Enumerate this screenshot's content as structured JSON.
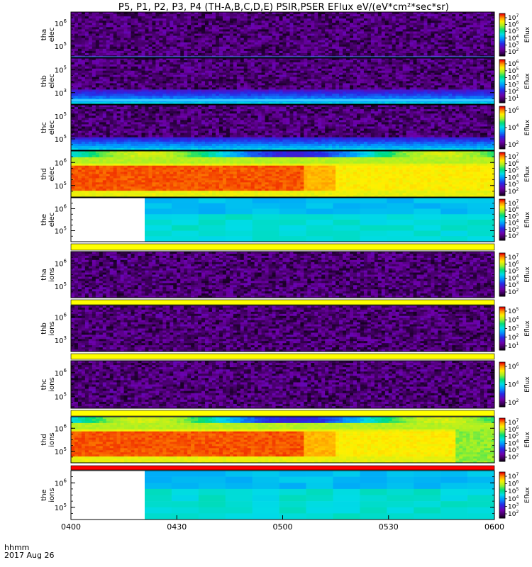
{
  "chart_data": {
    "type": "heatmap",
    "title": "P5, P1, P2, P3, P4 (TH-A,B,C,D,E) PSIR,PSER EFlux eV/(eV*cm²*sec*sr)",
    "x_ticks": [
      "0400",
      "0430",
      "0500",
      "0530",
      "0600"
    ],
    "x_range": [
      "0400",
      "0600"
    ],
    "footer_lines": [
      "hhmm",
      "2017 Aug 26"
    ],
    "colorbar_label": "Eflux",
    "panels": [
      {
        "label_line1": "tha",
        "label_line2": "elec",
        "y_ticks": [
          {
            "base": "10",
            "exp": "6"
          },
          {
            "base": "10",
            "exp": "5"
          }
        ],
        "colorbar_ticks": [
          {
            "base": "10",
            "exp": "7"
          },
          {
            "base": "10",
            "exp": "6"
          },
          {
            "base": "10",
            "exp": "5"
          },
          {
            "base": "10",
            "exp": "4"
          },
          {
            "base": "10",
            "exp": "3"
          },
          {
            "base": "10",
            "exp": "2"
          }
        ],
        "pattern": "noise"
      },
      {
        "label_line1": "thb",
        "label_line2": "elec",
        "y_ticks": [
          {
            "base": "10",
            "exp": "5"
          },
          {
            "base": "10",
            "exp": "3"
          }
        ],
        "colorbar_ticks": [
          {
            "base": "10",
            "exp": "6"
          },
          {
            "base": "10",
            "exp": "5"
          },
          {
            "base": "10",
            "exp": "4"
          },
          {
            "base": "10",
            "exp": "3"
          },
          {
            "base": "10",
            "exp": "2"
          },
          {
            "base": "10",
            "exp": "1"
          }
        ],
        "pattern": "noise-band"
      },
      {
        "label_line1": "thc",
        "label_line2": "elec",
        "y_ticks": [
          {
            "base": "10",
            "exp": "5"
          },
          {
            "base": "10",
            "exp": "5"
          }
        ],
        "colorbar_ticks": [
          {
            "base": "10",
            "exp": "6"
          },
          {
            "base": "10",
            "exp": "4"
          },
          {
            "base": "10",
            "exp": "2"
          }
        ],
        "pattern": "noise-band"
      },
      {
        "label_line1": "thd",
        "label_line2": "elec",
        "y_ticks": [
          {
            "base": "10",
            "exp": "6"
          },
          {
            "base": "10",
            "exp": "5"
          }
        ],
        "colorbar_ticks": [
          {
            "base": "10",
            "exp": "7"
          },
          {
            "base": "10",
            "exp": "6"
          },
          {
            "base": "10",
            "exp": "5"
          },
          {
            "base": "10",
            "exp": "4"
          },
          {
            "base": "10",
            "exp": "3"
          },
          {
            "base": "10",
            "exp": "2"
          }
        ],
        "pattern": "hot"
      },
      {
        "label_line1": "the",
        "label_line2": "elec",
        "y_ticks": [
          {
            "base": "10",
            "exp": "6"
          },
          {
            "base": "10",
            "exp": "5"
          }
        ],
        "colorbar_ticks": [
          {
            "base": "10",
            "exp": "7"
          },
          {
            "base": "10",
            "exp": "6"
          },
          {
            "base": "10",
            "exp": "5"
          },
          {
            "base": "10",
            "exp": "4"
          },
          {
            "base": "10",
            "exp": "3"
          },
          {
            "base": "10",
            "exp": "2"
          }
        ],
        "pattern": "cyan-gap"
      },
      {
        "label_line1": "tha",
        "label_line2": "ions",
        "y_ticks": [
          {
            "base": "10",
            "exp": "6"
          },
          {
            "base": "10",
            "exp": "5"
          }
        ],
        "colorbar_ticks": [
          {
            "base": "10",
            "exp": "7"
          },
          {
            "base": "10",
            "exp": "6"
          },
          {
            "base": "10",
            "exp": "5"
          },
          {
            "base": "10",
            "exp": "4"
          },
          {
            "base": "10",
            "exp": "3"
          },
          {
            "base": "10",
            "exp": "2"
          }
        ],
        "pattern": "noise-ions"
      },
      {
        "label_line1": "thb",
        "label_line2": "ions",
        "y_ticks": [
          {
            "base": "10",
            "exp": "6"
          },
          {
            "base": "10",
            "exp": "3"
          }
        ],
        "colorbar_ticks": [
          {
            "base": "10",
            "exp": "5"
          },
          {
            "base": "10",
            "exp": "4"
          },
          {
            "base": "10",
            "exp": "3"
          },
          {
            "base": "10",
            "exp": "2"
          },
          {
            "base": "10",
            "exp": "1"
          }
        ],
        "pattern": "noise-ions"
      },
      {
        "label_line1": "thc",
        "label_line2": "ions",
        "y_ticks": [
          {
            "base": "10",
            "exp": "6"
          },
          {
            "base": "10",
            "exp": "5"
          }
        ],
        "colorbar_ticks": [
          {
            "base": "10",
            "exp": "6"
          },
          {
            "base": "10",
            "exp": "4"
          },
          {
            "base": "10",
            "exp": "2"
          }
        ],
        "pattern": "noise-ions"
      },
      {
        "label_line1": "thd",
        "label_line2": "ions",
        "y_ticks": [
          {
            "base": "10",
            "exp": "6"
          },
          {
            "base": "10",
            "exp": "5"
          }
        ],
        "colorbar_ticks": [
          {
            "base": "10",
            "exp": "7"
          },
          {
            "base": "10",
            "exp": "6"
          },
          {
            "base": "10",
            "exp": "5"
          },
          {
            "base": "10",
            "exp": "4"
          },
          {
            "base": "10",
            "exp": "3"
          },
          {
            "base": "10",
            "exp": "2"
          }
        ],
        "pattern": "hot-ions"
      },
      {
        "label_line1": "the",
        "label_line2": "ions",
        "y_ticks": [
          {
            "base": "10",
            "exp": "6"
          },
          {
            "base": "10",
            "exp": "5"
          }
        ],
        "colorbar_ticks": [
          {
            "base": "10",
            "exp": "7"
          },
          {
            "base": "10",
            "exp": "6"
          },
          {
            "base": "10",
            "exp": "5"
          },
          {
            "base": "10",
            "exp": "4"
          },
          {
            "base": "10",
            "exp": "3"
          },
          {
            "base": "10",
            "exp": "2"
          }
        ],
        "pattern": "cyan-gap"
      }
    ]
  }
}
